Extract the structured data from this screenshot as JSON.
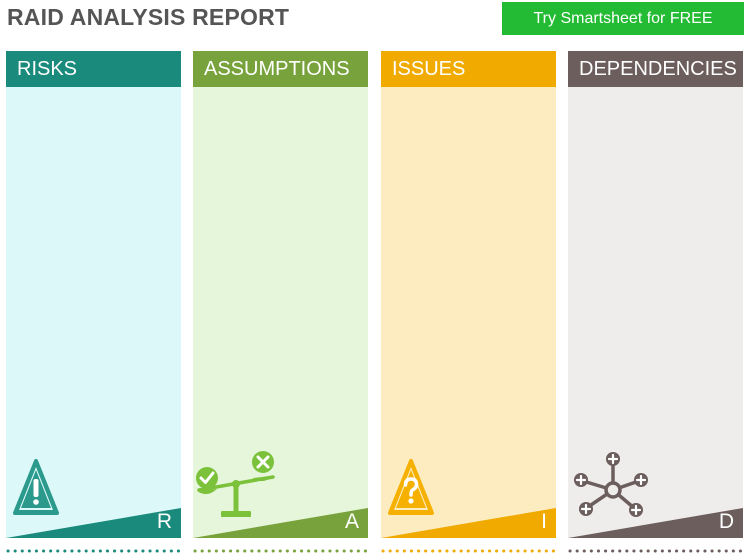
{
  "header": {
    "title": "RAID ANALYSIS REPORT",
    "cta_label": "Try Smartsheet for FREE",
    "cta_color": "#22bb33"
  },
  "columns": [
    {
      "title": "RISKS",
      "letter": "R",
      "header_color": "#1a8a7c",
      "body_color": "#dcf8f8",
      "icon": "warning-triangle-icon"
    },
    {
      "title": "ASSUMPTIONS",
      "letter": "A",
      "header_color": "#78a33c",
      "body_color": "#e6f6da",
      "icon": "balance-scale-icon"
    },
    {
      "title": "ISSUES",
      "letter": "I",
      "header_color": "#f0aa00",
      "body_color": "#fcecc0",
      "icon": "question-triangle-icon"
    },
    {
      "title": "DEPENDENCIES",
      "letter": "D",
      "header_color": "#6b5e5c",
      "body_color": "#efecec",
      "icon": "network-hub-icon"
    }
  ]
}
